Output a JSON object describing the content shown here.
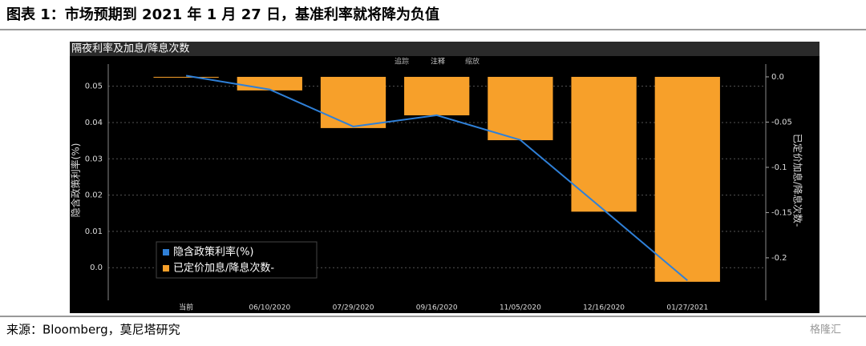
{
  "header": {
    "title": "图表 1：市场预期到 2021 年 1 月 27 日，基准利率就将降为负值"
  },
  "footer": {
    "source": "来源：Bloomberg，莫尼塔研究",
    "watermark": "格隆汇"
  },
  "toolbar": [
    "追踪",
    "注释",
    "缩放"
  ],
  "chart_data": {
    "type": "bar-line",
    "title": "隔夜利率及加息/降息次数",
    "categories": [
      "当前",
      "06/10/2020",
      "07/29/2020",
      "09/16/2020",
      "11/05/2020",
      "12/16/2020",
      "01/27/2021"
    ],
    "series": [
      {
        "name": "隐含政策利率(%)",
        "type": "line",
        "color": "#2f80d8",
        "values": [
          0.0529,
          0.0491,
          0.0389,
          0.042,
          0.0352,
          0.0159,
          -0.0035
        ]
      },
      {
        "name": "已定价加息/降息次数-",
        "type": "bar",
        "axis": "y2",
        "color": "#f7a02a",
        "values": [
          0,
          -0.015,
          -0.0566,
          -0.0425,
          -0.07,
          -0.149,
          -0.2265
        ]
      }
    ],
    "ylabel": "隐含政策利率(%)",
    "y2label": "已定价加息/降息次数-",
    "ylim": [
      -0.009,
      0.055
    ],
    "yticks": [
      {
        "value": 0,
        "label": "0.0"
      },
      0.01,
      0.02,
      0.03,
      0.04,
      0.05
    ],
    "y2lim": [
      -0.247,
      0.0097
    ],
    "y2ticks": [
      {
        "value": 0,
        "label": "0.0"
      },
      -0.05,
      -0.1,
      -0.15,
      -0.2
    ],
    "grid": true,
    "legend": "lower-left"
  }
}
